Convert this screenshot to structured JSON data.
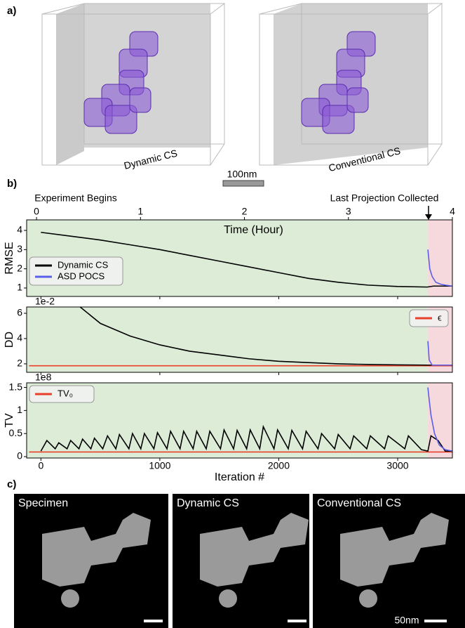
{
  "panel_labels": [
    "a)",
    "b)",
    "c)"
  ],
  "panel_a": {
    "renders": [
      "Dynamic CS",
      "Conventional CS"
    ],
    "scale_bar": "100nm"
  },
  "panel_c": {
    "images": [
      "Specimen",
      "Dynamic CS",
      "Conventional CS"
    ],
    "scale_bar": "50nm"
  },
  "chart_data": [
    {
      "type": "line",
      "ylabel": "RMSE",
      "annotations": [
        "Experiment Begins",
        "Last Projection Collected"
      ],
      "x2label": "Time (Hour)",
      "x2lim": [
        -0.095,
        4.0
      ],
      "x2ticks": [
        0,
        1,
        2,
        3,
        4
      ],
      "xlim": [
        -120,
        3460
      ],
      "xticks": [
        0,
        1000,
        2000,
        3000
      ],
      "ylim": [
        0.56,
        4.55
      ],
      "yticks": [
        1,
        2,
        3,
        4
      ],
      "legend": "lower left",
      "phases": [
        {
          "xlim": [
            -120,
            3254
          ],
          "color": "#dcecd6"
        },
        {
          "xlim": [
            3254,
            3460
          ],
          "color": "#f6d9dc"
        }
      ],
      "series": [
        {
          "name": "Dynamic CS",
          "color": "#000000",
          "x": [
            0,
            250,
            500,
            750,
            1000,
            1250,
            1500,
            1750,
            2000,
            2250,
            2500,
            2750,
            3000,
            3250,
            3300,
            3460
          ],
          "values": [
            3.9,
            3.7,
            3.5,
            3.25,
            3.0,
            2.7,
            2.4,
            2.1,
            1.8,
            1.5,
            1.3,
            1.15,
            1.08,
            1.05,
            1.1,
            1.1
          ]
        },
        {
          "name": "ASD POCS",
          "color": "#5b5ee8",
          "x": [
            3254,
            3270,
            3290,
            3320,
            3360,
            3400,
            3460
          ],
          "values": [
            3.0,
            2.0,
            1.6,
            1.3,
            1.2,
            1.15,
            1.1
          ]
        }
      ]
    },
    {
      "type": "line",
      "ylabel": "DD",
      "offset_text": "1e-2",
      "xlim": [
        -120,
        3460
      ],
      "xticks": [
        0,
        1000,
        2000,
        3000
      ],
      "ylim": [
        1.33,
        6.5
      ],
      "yticks": [
        2,
        4,
        6
      ],
      "legend": "upper right",
      "phases": [
        {
          "xlim": [
            -120,
            3254
          ],
          "color": "#dcecd6"
        },
        {
          "xlim": [
            3254,
            3460
          ],
          "color": "#f6d9dc"
        }
      ],
      "series": [
        {
          "name": "ϵ",
          "color": "#e8402a",
          "x": [
            -100,
            3460
          ],
          "values": [
            1.85,
            1.85
          ]
        },
        {
          "color": "#000000",
          "x": [
            200,
            330,
            500,
            750,
            1000,
            1250,
            1500,
            1750,
            2000,
            2250,
            2500,
            2750,
            3000,
            3250,
            3460
          ],
          "values": [
            7.5,
            6.5,
            5.2,
            4.2,
            3.5,
            3.0,
            2.7,
            2.4,
            2.2,
            2.1,
            2.0,
            1.95,
            1.92,
            1.9,
            1.9
          ]
        },
        {
          "color": "#5b5ee8",
          "x": [
            3254,
            3265,
            3290,
            3460
          ],
          "values": [
            3.8,
            2.3,
            1.9,
            1.9
          ]
        }
      ]
    },
    {
      "type": "line",
      "ylabel": "TV",
      "xlabel": "Iteration #",
      "offset_text": "1e8",
      "xlim": [
        -120,
        3460
      ],
      "xticks": [
        0,
        1000,
        2000,
        3000
      ],
      "ylim": [
        -0.03,
        1.6
      ],
      "yticks": [
        0,
        0.5,
        1,
        1.5
      ],
      "legend": "upper left",
      "phases": [
        {
          "xlim": [
            -120,
            3254
          ],
          "color": "#dcecd6"
        },
        {
          "xlim": [
            3254,
            3460
          ],
          "color": "#f6d9dc"
        }
      ],
      "series": [
        {
          "name": "TV₀",
          "color": "#e8402a",
          "x": [
            -100,
            3460
          ],
          "values": [
            0.1,
            0.1
          ]
        },
        {
          "color": "#000000",
          "x": [
            0,
            50,
            120,
            150,
            220,
            250,
            320,
            350,
            420,
            450,
            520,
            560,
            630,
            660,
            740,
            770,
            840,
            870,
            950,
            980,
            1060,
            1090,
            1170,
            1200,
            1280,
            1310,
            1390,
            1420,
            1510,
            1540,
            1620,
            1650,
            1730,
            1760,
            1840,
            1870,
            1960,
            1990,
            2080,
            2110,
            2200,
            2230,
            2330,
            2360,
            2470,
            2500,
            2600,
            2630,
            2740,
            2770,
            2890,
            2920,
            3060,
            3090,
            3200,
            3254,
            3280,
            3340,
            3400,
            3460
          ],
          "values": [
            0.12,
            0.35,
            0.17,
            0.3,
            0.17,
            0.35,
            0.17,
            0.38,
            0.17,
            0.4,
            0.17,
            0.45,
            0.17,
            0.48,
            0.17,
            0.5,
            0.17,
            0.5,
            0.17,
            0.52,
            0.17,
            0.55,
            0.17,
            0.55,
            0.17,
            0.55,
            0.17,
            0.55,
            0.17,
            0.58,
            0.17,
            0.57,
            0.17,
            0.58,
            0.17,
            0.65,
            0.17,
            0.58,
            0.17,
            0.57,
            0.17,
            0.55,
            0.17,
            0.5,
            0.17,
            0.48,
            0.17,
            0.45,
            0.17,
            0.45,
            0.17,
            0.45,
            0.17,
            0.45,
            0.15,
            0.12,
            0.45,
            0.35,
            0.12,
            0.12
          ]
        },
        {
          "color": "#5b5ee8",
          "x": [
            3254,
            3262,
            3280,
            3310,
            3350,
            3400,
            3460
          ],
          "values": [
            1.5,
            1.3,
            0.9,
            0.5,
            0.25,
            0.15,
            0.12
          ]
        }
      ]
    }
  ]
}
